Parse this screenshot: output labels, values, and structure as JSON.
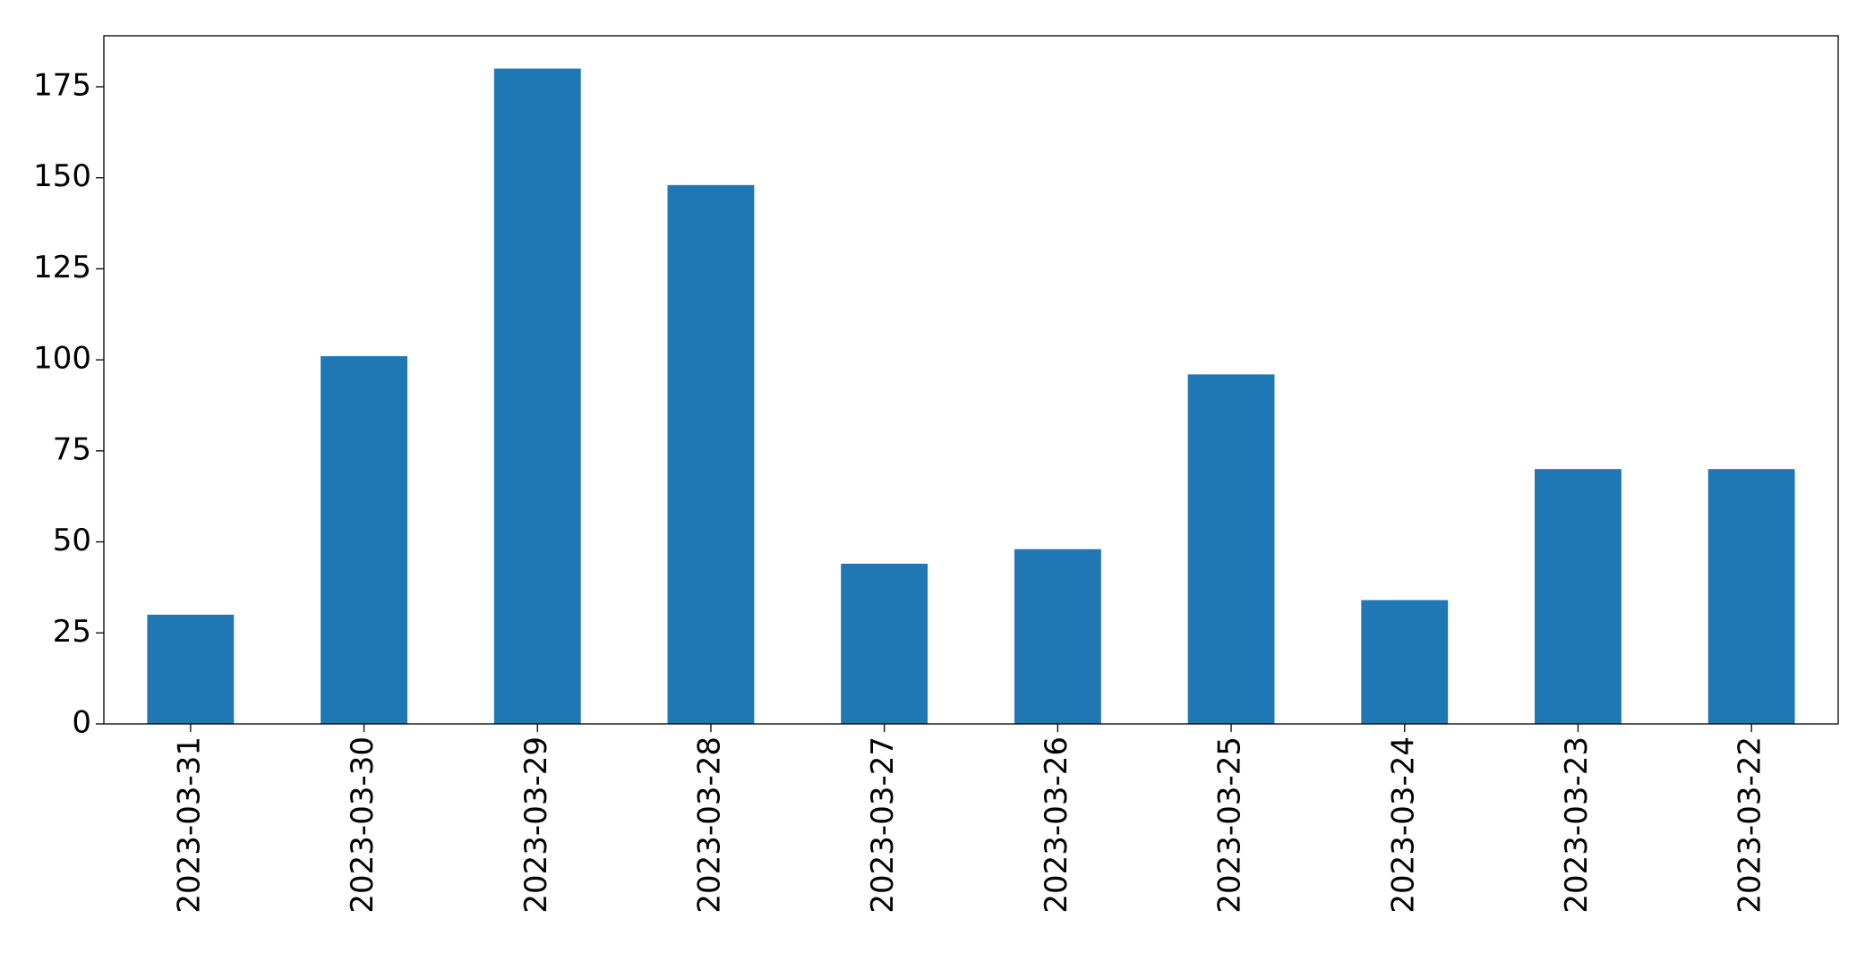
{
  "chart_data": {
    "type": "bar",
    "categories": [
      "2023-03-31",
      "2023-03-30",
      "2023-03-29",
      "2023-03-28",
      "2023-03-27",
      "2023-03-26",
      "2023-03-25",
      "2023-03-24",
      "2023-03-23",
      "2023-03-22"
    ],
    "values": [
      30,
      101,
      180,
      148,
      44,
      48,
      96,
      34,
      70,
      70
    ],
    "color": "#1f77b4",
    "ylim": [
      0,
      189
    ],
    "yticks": [
      0,
      25,
      50,
      75,
      100,
      125,
      150,
      175
    ],
    "grid": false
  }
}
